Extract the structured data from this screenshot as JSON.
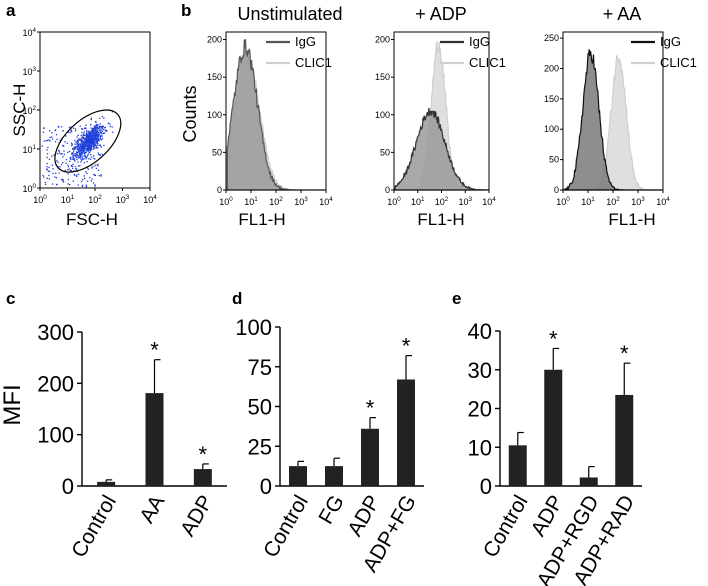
{
  "panel_letters": {
    "a": "a",
    "b": "b",
    "c": "c",
    "d": "d",
    "e": "e"
  },
  "chart_data": [
    {
      "panel": "a",
      "type": "scatter",
      "xlabel": "FSC-H",
      "ylabel": "SSC-H",
      "x_ticks": [
        "10⁰",
        "10¹",
        "10²",
        "10³",
        "10⁴"
      ],
      "y_ticks": [
        "10⁰",
        "10¹",
        "10²",
        "10³",
        "10⁴"
      ],
      "log_scale": true,
      "xlim": [
        1,
        10000
      ],
      "ylim": [
        1,
        10000
      ],
      "point_color": "#1f3fd8",
      "gate": "ellipse",
      "cluster_center": {
        "x": 55,
        "y": 16
      }
    },
    {
      "panel": "b-unstimulated",
      "type": "area",
      "title": "Unstimulated",
      "ylabel": "Counts",
      "xlabel": "FL1-H",
      "log_scale": true,
      "x_ticks": [
        "10⁰",
        "10¹",
        "10²",
        "10³",
        "10⁴"
      ],
      "y_ticks": [
        "0",
        "50",
        "100",
        "150",
        "200"
      ],
      "ylim": [
        0,
        210
      ],
      "legend": [
        "IgG",
        "CLIC1"
      ],
      "series": [
        {
          "name": "IgG",
          "color": "#555555",
          "fill": "#9a9a9a",
          "peak_x": 6,
          "peak_y": 190,
          "width": 0.48
        },
        {
          "name": "CLIC1",
          "color": "#cfcfcf",
          "fill": "#d8d8d8",
          "peak_x": 7,
          "peak_y": 175,
          "width": 0.5
        }
      ]
    },
    {
      "panel": "b-adp",
      "type": "area",
      "title": "+ ADP",
      "xlabel": "FL1-H",
      "log_scale": true,
      "x_ticks": [
        "10⁰",
        "10¹",
        "10²",
        "10³",
        "10⁴"
      ],
      "y_ticks": [
        "0",
        "50",
        "100",
        "150",
        "200"
      ],
      "ylim": [
        0,
        210
      ],
      "legend": [
        "IgG",
        "CLIC1"
      ],
      "series": [
        {
          "name": "IgG",
          "color": "#333333",
          "fill": "#9a9a9a",
          "peak_x": 35,
          "peak_y": 105,
          "width": 0.6
        },
        {
          "name": "CLIC1",
          "color": "#cfcfcf",
          "fill": "#dcdcdc",
          "peak_x": 75,
          "peak_y": 195,
          "width": 0.3
        }
      ]
    },
    {
      "panel": "b-aa",
      "type": "area",
      "title": "+ AA",
      "xlabel": "FL1-H",
      "log_scale": true,
      "x_ticks": [
        "10⁰",
        "10¹",
        "10²",
        "10³",
        "10⁴"
      ],
      "y_ticks": [
        "0",
        "50",
        "100",
        "150",
        "200",
        "250"
      ],
      "ylim": [
        0,
        260
      ],
      "legend": [
        "IgG",
        "CLIC1"
      ],
      "series": [
        {
          "name": "IgG",
          "color": "#111111",
          "fill": "#7a7a7a",
          "peak_x": 13,
          "peak_y": 225,
          "width": 0.32
        },
        {
          "name": "CLIC1",
          "color": "#cfcfcf",
          "fill": "#dcdcdc",
          "peak_x": 170,
          "peak_y": 220,
          "width": 0.3
        }
      ]
    },
    {
      "panel": "c",
      "type": "bar",
      "ylabel": "MFI",
      "ylim": [
        0,
        300
      ],
      "y_ticks": [
        "0",
        "100",
        "200",
        "300"
      ],
      "categories": [
        "Control",
        "AA",
        "ADP"
      ],
      "values": [
        8,
        181,
        33
      ],
      "errors": [
        4,
        65,
        10
      ],
      "significant": [
        false,
        true,
        true
      ],
      "star": "*",
      "bar_color": "#222222"
    },
    {
      "panel": "d",
      "type": "bar",
      "ylim": [
        0,
        100
      ],
      "y_ticks": [
        "0",
        "25",
        "50",
        "75",
        "100"
      ],
      "categories": [
        "Control",
        "FG",
        "ADP",
        "ADP+FG"
      ],
      "values": [
        12.5,
        12.5,
        36,
        67
      ],
      "errors": [
        3,
        5,
        7,
        15
      ],
      "significant": [
        false,
        false,
        true,
        true
      ],
      "star": "*",
      "bar_color": "#222222"
    },
    {
      "panel": "e",
      "type": "bar",
      "ylim": [
        0,
        40
      ],
      "y_ticks": [
        "0",
        "10",
        "20",
        "30",
        "40"
      ],
      "categories": [
        "Control",
        "ADP",
        "ADP+RGD",
        "ADP+RAD"
      ],
      "values": [
        10.5,
        30,
        2.2,
        23.5
      ],
      "errors": [
        3.3,
        5.5,
        2.8,
        8.2
      ],
      "significant": [
        false,
        true,
        false,
        true
      ],
      "star": "*",
      "bar_color": "#222222"
    }
  ]
}
